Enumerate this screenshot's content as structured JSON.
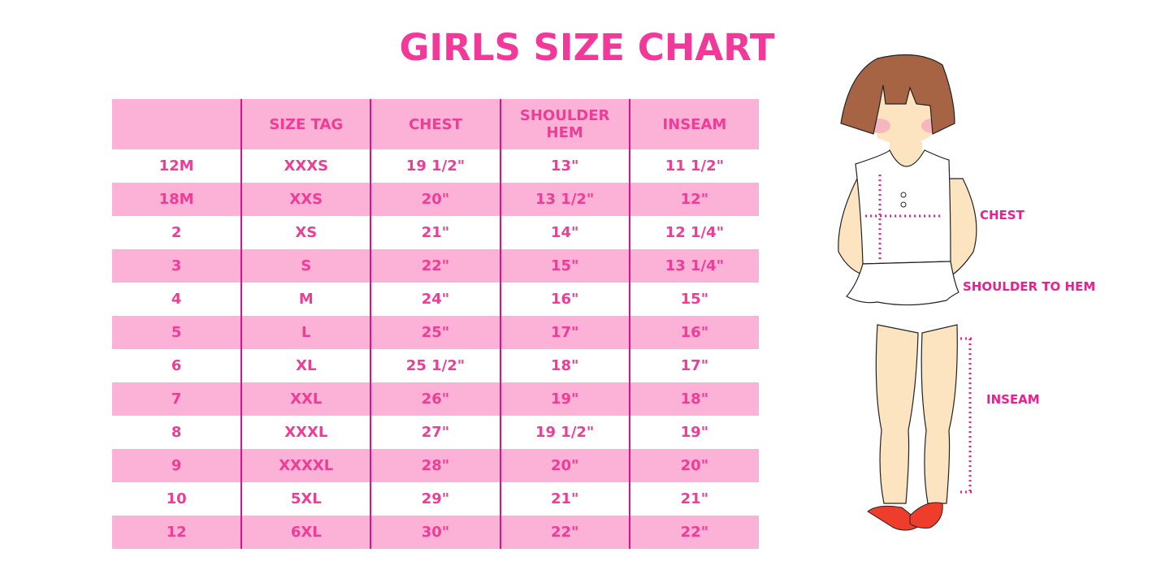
{
  "title": "GIRLS SIZE CHART",
  "table": {
    "headers": [
      "",
      "SIZE TAG",
      "CHEST",
      "SHOULDER HEM",
      "INSEAM"
    ],
    "rows": [
      [
        "12M",
        "XXXS",
        "19 1/2\"",
        "13\"",
        "11 1/2\""
      ],
      [
        "18M",
        "XXS",
        "20\"",
        "13 1/2\"",
        "12\""
      ],
      [
        "2",
        "XS",
        "21\"",
        "14\"",
        "12 1/4\""
      ],
      [
        "3",
        "S",
        "22\"",
        "15\"",
        "13 1/4\""
      ],
      [
        "4",
        "M",
        "24\"",
        "16\"",
        "15\""
      ],
      [
        "5",
        "L",
        "25\"",
        "17\"",
        "16\""
      ],
      [
        "6",
        "XL",
        "25 1/2\"",
        "18\"",
        "17\""
      ],
      [
        "7",
        "XXL",
        "26\"",
        "19\"",
        "18\""
      ],
      [
        "8",
        "XXXL",
        "27\"",
        "19 1/2\"",
        "19\""
      ],
      [
        "9",
        "XXXXL",
        "28\"",
        "20\"",
        "20\""
      ],
      [
        "10",
        "5XL",
        "29\"",
        "21\"",
        "21\""
      ],
      [
        "12",
        "6XL",
        "30\"",
        "22\"",
        "22\""
      ]
    ]
  },
  "figure": {
    "labels": {
      "chest": "CHEST",
      "shoulder_to_hem": "SHOULDER TO HEM",
      "inseam": "INSEAM"
    }
  },
  "colors": {
    "accent": "#ee3d96",
    "row_band": "#fcb1d6",
    "divider": "#e0108a"
  }
}
